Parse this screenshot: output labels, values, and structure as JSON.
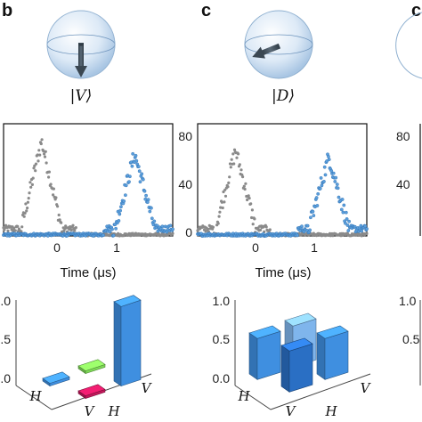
{
  "panels": [
    {
      "letter": "b",
      "state_label": "|V⟩",
      "vector": "down"
    },
    {
      "letter": "c",
      "state_label": "|D⟩",
      "vector": "diagonal"
    },
    {
      "letter": "c",
      "state_label": "",
      "vector": "none"
    }
  ],
  "colors": {
    "gray_series": "#8a8a8a",
    "blue_series": "#5b9fdc",
    "bar_blue": "#3f8fe0",
    "bar_light_blue": "#7fb5ec",
    "bar_dark_blue": "#2a6fc4",
    "bar_green": "#7ed957",
    "bar_magenta": "#c2185b"
  },
  "chart_data": [
    {
      "type": "scatter",
      "panel": "b",
      "xlabel": "Time (μs)",
      "ylabel": "",
      "x_ticks": [
        "0",
        "1"
      ],
      "y_ticks": [
        "80",
        "40",
        "0"
      ],
      "ylim": [
        0,
        85
      ],
      "xlim": [
        -0.9,
        1.55
      ],
      "series": [
        {
          "color": "gray",
          "peak_time": -0.35,
          "peak_value": 72,
          "half_width": 0.32,
          "start": -0.9,
          "end": 1.55,
          "gate": "first"
        },
        {
          "color": "blue",
          "peak_time": 1.0,
          "peak_value": 62,
          "half_width": 0.32,
          "start": -0.9,
          "end": 1.55,
          "gate": "second"
        }
      ]
    },
    {
      "type": "scatter",
      "panel": "c",
      "xlabel": "Time (μs)",
      "ylabel": "",
      "x_ticks": [
        "0",
        "1"
      ],
      "y_ticks": [
        "80",
        "40",
        "0"
      ],
      "ylim": [
        0,
        85
      ],
      "xlim": [
        -0.9,
        1.55
      ],
      "series": [
        {
          "color": "gray",
          "peak_time": -0.35,
          "peak_value": 65,
          "half_width": 0.32,
          "start": -0.9,
          "end": 1.55,
          "gate": "first"
        },
        {
          "color": "blue",
          "peak_time": 1.0,
          "peak_value": 60,
          "half_width": 0.32,
          "start": -0.9,
          "end": 1.55,
          "gate": "second"
        }
      ]
    },
    {
      "type": "bar3d",
      "panel": "b",
      "z_ticks": [
        "1.0",
        "0.5",
        "0.0"
      ],
      "zlim": [
        0,
        1
      ],
      "row_labels": [
        "H",
        "V"
      ],
      "col_labels": [
        "H",
        "V"
      ],
      "bars": [
        {
          "row": "H",
          "col": "H",
          "value": 0.02,
          "color": "bar_blue"
        },
        {
          "row": "H",
          "col": "V",
          "value": 0.02,
          "color": "bar_green"
        },
        {
          "row": "V",
          "col": "H",
          "value": 0.03,
          "color": "bar_magenta"
        },
        {
          "row": "V",
          "col": "V",
          "value": 0.97,
          "color": "bar_blue"
        }
      ]
    },
    {
      "type": "bar3d",
      "panel": "c",
      "z_ticks": [
        "1.0",
        "0.5",
        "0.0"
      ],
      "zlim": [
        0,
        1
      ],
      "row_labels": [
        "H",
        "V"
      ],
      "col_labels": [
        "H",
        "V"
      ],
      "bars": [
        {
          "row": "H",
          "col": "H",
          "value": 0.5,
          "color": "bar_blue"
        },
        {
          "row": "H",
          "col": "V",
          "value": 0.5,
          "color": "bar_light_blue"
        },
        {
          "row": "V",
          "col": "H",
          "value": 0.5,
          "color": "bar_dark_blue"
        },
        {
          "row": "V",
          "col": "V",
          "value": 0.5,
          "color": "bar_blue"
        }
      ]
    },
    {
      "type": "scatter",
      "panel": "partial",
      "y_ticks": [
        "80",
        "40"
      ]
    },
    {
      "type": "bar3d",
      "panel": "partial",
      "z_ticks": [
        "1.0",
        "0.5"
      ]
    }
  ]
}
